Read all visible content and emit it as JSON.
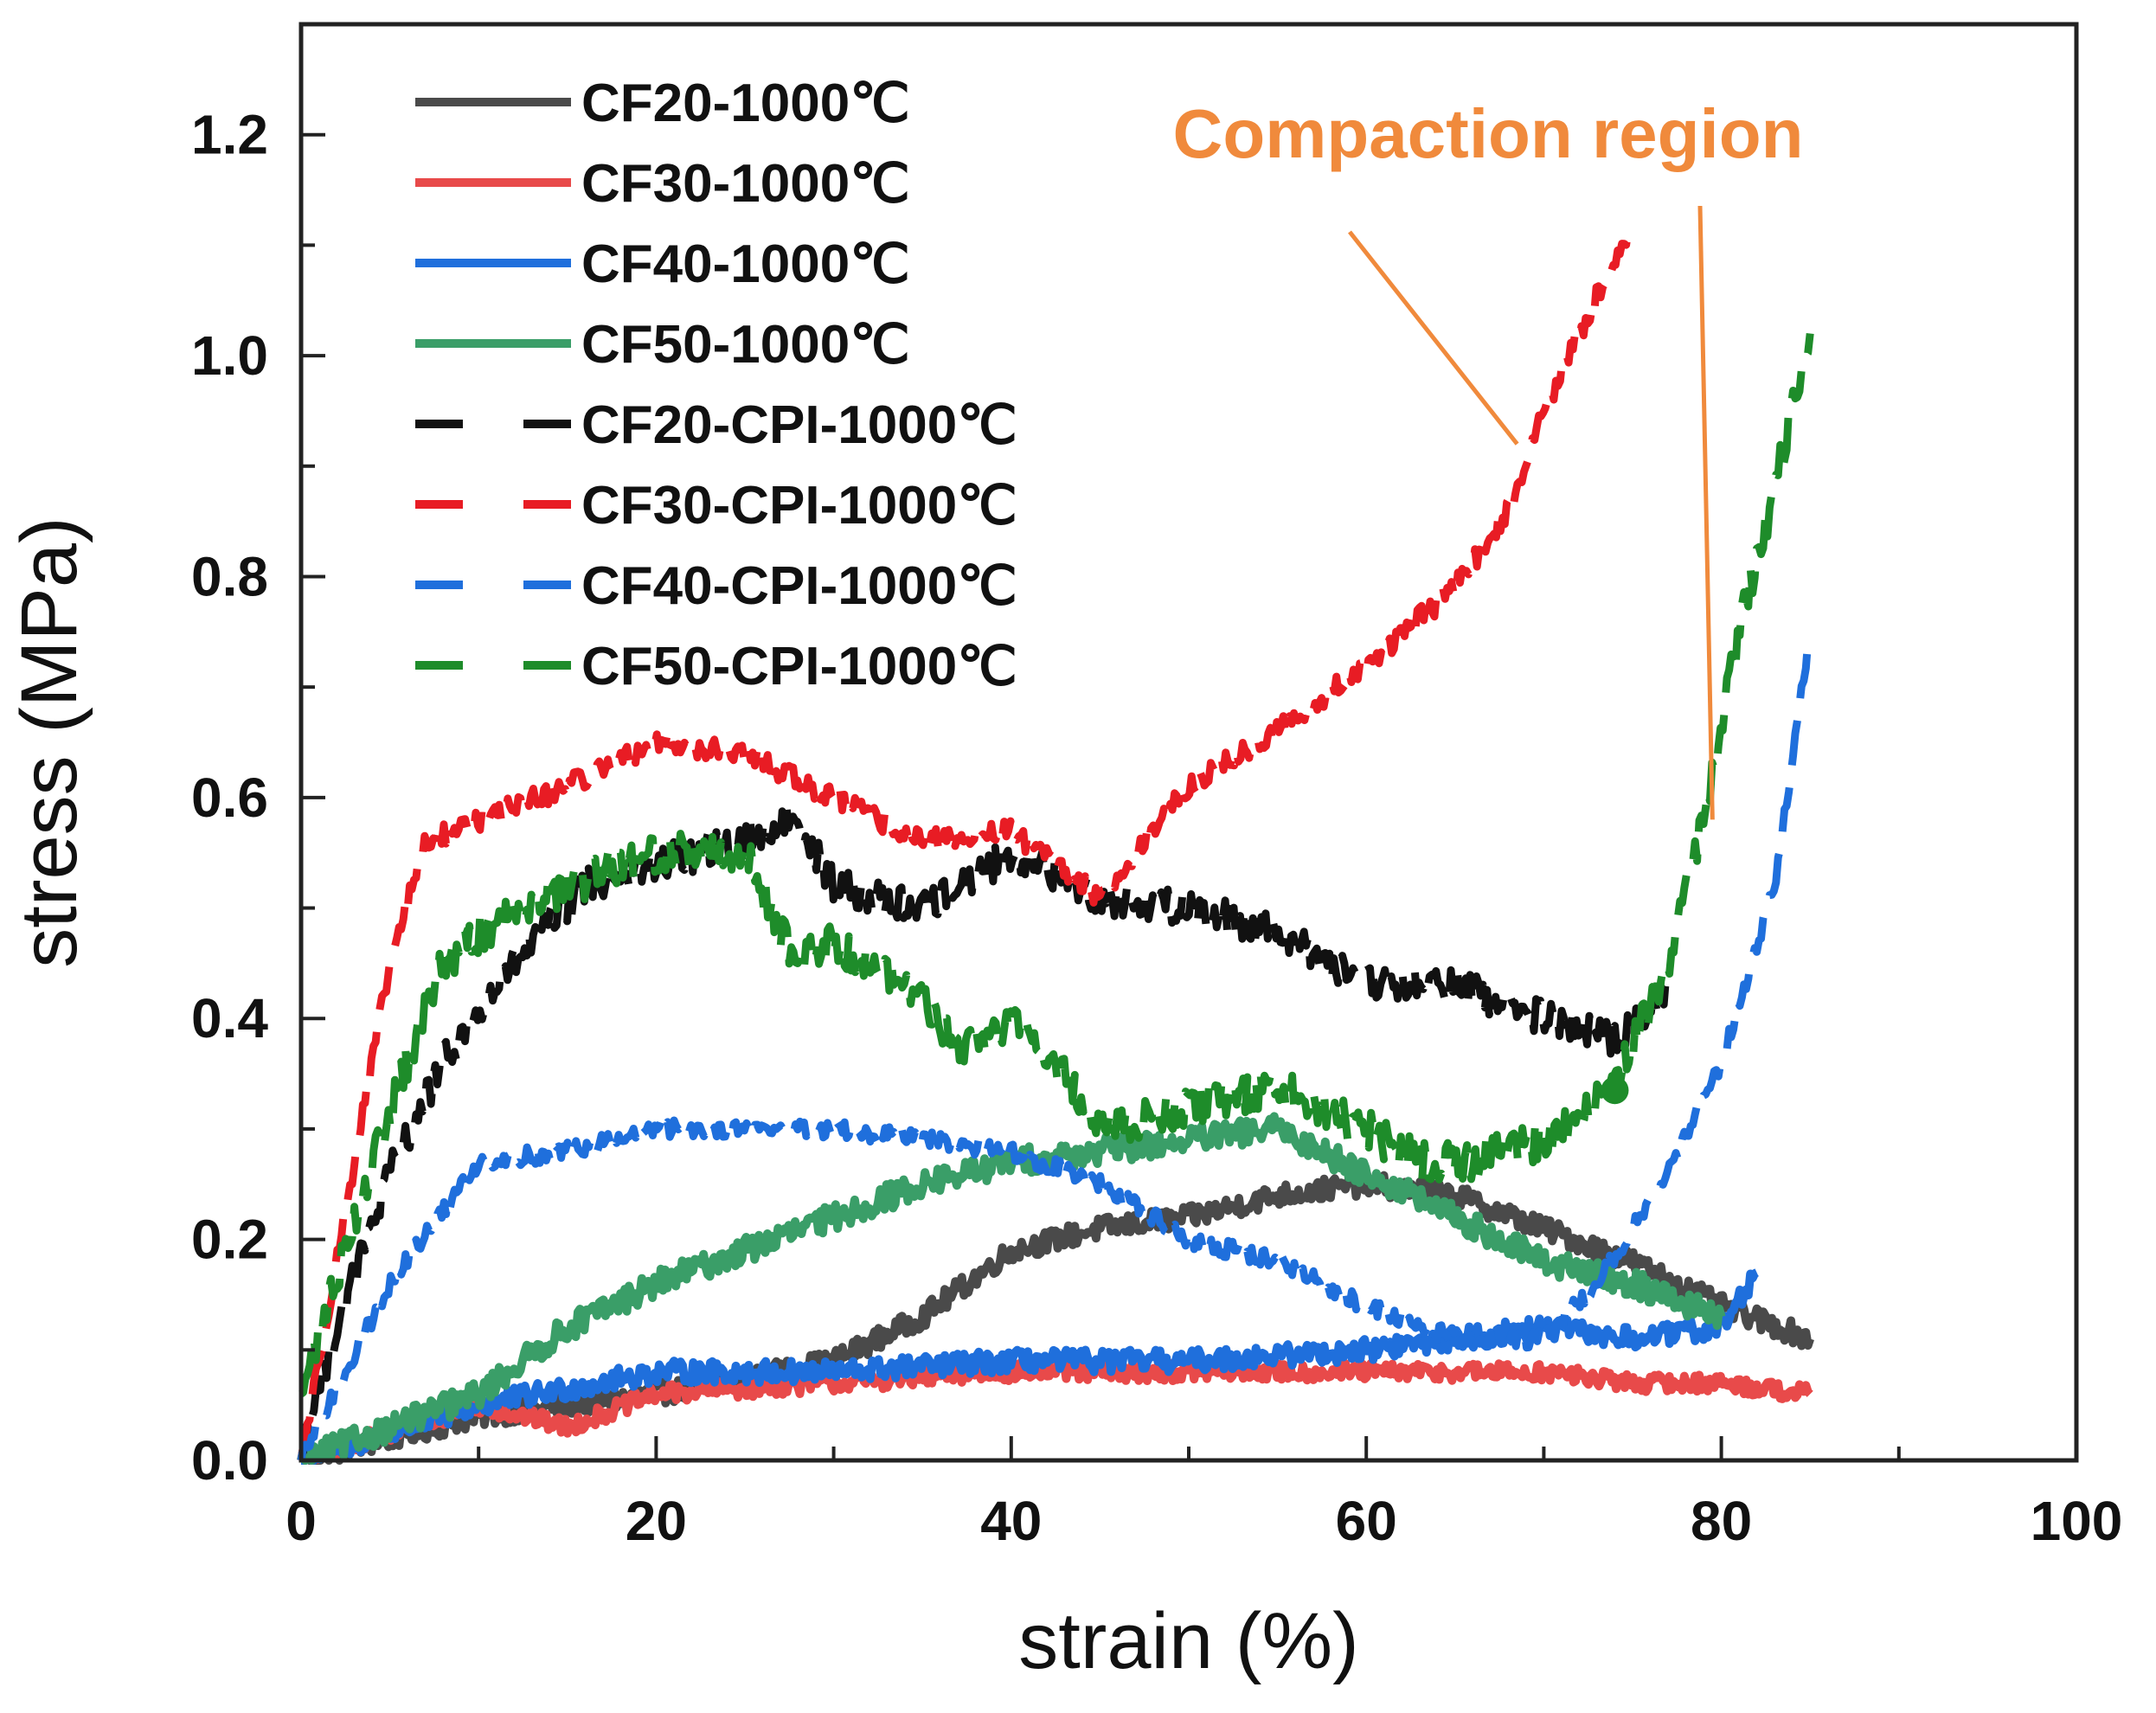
{
  "chart_data": {
    "type": "line",
    "title": "",
    "xlabel": "strain (%)",
    "ylabel": "stress (MPa)",
    "xlim": [
      0,
      100
    ],
    "ylim": [
      0,
      1.3
    ],
    "xticks": [
      0,
      20,
      40,
      60,
      80,
      100
    ],
    "xtick_labels": [
      "0",
      "20",
      "40",
      "60",
      "80",
      "100"
    ],
    "yticks": [
      0.0,
      0.2,
      0.4,
      0.6,
      0.8,
      1.0,
      1.2
    ],
    "ytick_labels": [
      "0.0",
      "0.2",
      "0.4",
      "0.6",
      "0.8",
      "1.0",
      "1.2"
    ],
    "grid": false,
    "legend_position": "top-left",
    "series": [
      {
        "name": "CF20-1000℃",
        "color": "#4a4a4a",
        "style": "solid",
        "x": [
          0,
          10,
          20,
          30,
          35,
          40,
          45,
          50,
          55,
          60,
          65,
          70,
          75,
          80,
          85
        ],
        "y": [
          0.0,
          0.04,
          0.06,
          0.09,
          0.13,
          0.19,
          0.21,
          0.22,
          0.24,
          0.25,
          0.24,
          0.21,
          0.18,
          0.14,
          0.11
        ]
      },
      {
        "name": "CF30-1000℃",
        "color": "#e84a4a",
        "style": "solid",
        "x": [
          0,
          10,
          15,
          20,
          30,
          40,
          50,
          60,
          70,
          75,
          80,
          85
        ],
        "y": [
          0.0,
          0.05,
          0.03,
          0.06,
          0.07,
          0.08,
          0.08,
          0.08,
          0.08,
          0.07,
          0.07,
          0.06
        ]
      },
      {
        "name": "CF40-1000℃",
        "color": "#1f6fdc",
        "style": "solid",
        "x": [
          0,
          10,
          20,
          30,
          40,
          50,
          60,
          65,
          70,
          75,
          80,
          82
        ],
        "y": [
          0.0,
          0.05,
          0.08,
          0.08,
          0.09,
          0.09,
          0.1,
          0.11,
          0.12,
          0.11,
          0.12,
          0.17
        ]
      },
      {
        "name": "CF50-1000℃",
        "color": "#3a9e68",
        "style": "solid",
        "x": [
          0,
          5,
          10,
          15,
          20,
          25,
          30,
          35,
          40,
          45,
          50,
          55,
          60,
          65,
          70,
          75,
          80
        ],
        "y": [
          0.0,
          0.03,
          0.06,
          0.12,
          0.16,
          0.19,
          0.22,
          0.25,
          0.27,
          0.28,
          0.29,
          0.3,
          0.26,
          0.22,
          0.18,
          0.16,
          0.13
        ]
      },
      {
        "name": "CF20-CPI-1000℃",
        "color": "#111111",
        "style": "dashed",
        "x": [
          0,
          2,
          5,
          8,
          12,
          16,
          20,
          25,
          28,
          30,
          35,
          40,
          45,
          50,
          55,
          60,
          65,
          70,
          74,
          77
        ],
        "y": [
          0.01,
          0.12,
          0.26,
          0.36,
          0.45,
          0.52,
          0.54,
          0.56,
          0.58,
          0.52,
          0.5,
          0.55,
          0.51,
          0.5,
          0.48,
          0.43,
          0.43,
          0.4,
          0.38,
          0.43
        ]
      },
      {
        "name": "CF30-CPI-1000℃",
        "color": "#e81c24",
        "style": "dashed",
        "x": [
          0,
          2,
          5,
          7,
          10,
          15,
          20,
          25,
          30,
          35,
          40,
          45,
          50,
          55,
          60,
          65,
          68,
          70,
          72,
          75
        ],
        "y": [
          0.0,
          0.18,
          0.45,
          0.56,
          0.58,
          0.61,
          0.65,
          0.64,
          0.6,
          0.56,
          0.57,
          0.51,
          0.61,
          0.66,
          0.72,
          0.79,
          0.86,
          0.95,
          1.02,
          1.12
        ]
      },
      {
        "name": "CF40-CPI-1000℃",
        "color": "#1f6fdc",
        "style": "dashed",
        "x": [
          0,
          5,
          10,
          15,
          20,
          25,
          30,
          35,
          40,
          45,
          50,
          55,
          60,
          65,
          70,
          73,
          77,
          80,
          83,
          85
        ],
        "y": [
          0.0,
          0.16,
          0.27,
          0.28,
          0.3,
          0.3,
          0.3,
          0.29,
          0.28,
          0.25,
          0.2,
          0.18,
          0.14,
          0.11,
          0.11,
          0.16,
          0.26,
          0.36,
          0.52,
          0.75
        ]
      },
      {
        "name": "CF50-CPI-1000℃",
        "color": "#1e8c2a",
        "style": "dashed",
        "x": [
          0,
          3,
          6,
          8,
          12,
          20,
          25,
          28,
          30,
          35,
          37,
          40,
          43,
          45,
          50,
          55,
          60,
          63,
          66,
          70,
          74,
          77,
          79,
          81,
          83,
          85
        ],
        "y": [
          0.06,
          0.22,
          0.36,
          0.45,
          0.5,
          0.55,
          0.55,
          0.45,
          0.47,
          0.42,
          0.37,
          0.4,
          0.35,
          0.3,
          0.32,
          0.34,
          0.3,
          0.27,
          0.27,
          0.29,
          0.34,
          0.45,
          0.58,
          0.75,
          0.88,
          1.02
        ]
      }
    ],
    "annotations": [
      {
        "text": "Compaction region",
        "color": "#f08a3c",
        "arrow_targets": [
          [
            68.5,
            0.92
          ],
          [
            79.5,
            0.58
          ]
        ]
      }
    ],
    "markers": [
      {
        "x": 74,
        "y": 0.335,
        "color": "#1e8c2a",
        "shape": "filled-circle"
      }
    ]
  }
}
